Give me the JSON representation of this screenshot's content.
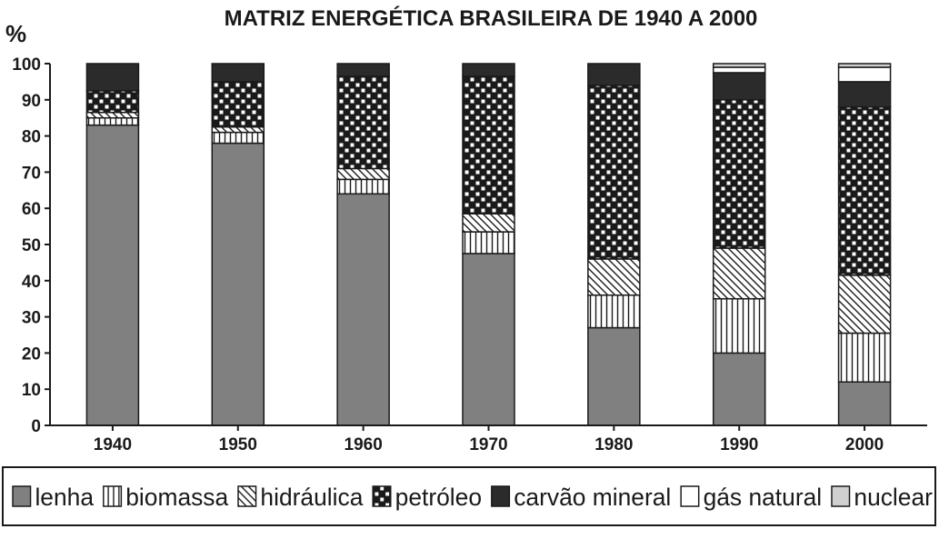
{
  "chart_data": {
    "type": "bar",
    "stacked": true,
    "title": "MATRIZ ENERGÉTICA BRASILEIRA DE 1940 A 2000",
    "ylabel": "%",
    "xlabel": "",
    "ylim": [
      0,
      100
    ],
    "yticks": [
      0,
      10,
      20,
      30,
      40,
      50,
      60,
      70,
      80,
      90,
      100
    ],
    "grid": false,
    "legend_position": "bottom",
    "categories": [
      "1940",
      "1950",
      "1960",
      "1970",
      "1980",
      "1990",
      "2000"
    ],
    "series": [
      {
        "name": "lenha",
        "pattern": "solid-gray",
        "color": "#808080",
        "values": [
          83,
          78,
          64,
          47.5,
          27,
          20,
          12
        ]
      },
      {
        "name": "biomassa",
        "pattern": "vertical-lines",
        "color": "#1a1a1a",
        "values": [
          2,
          3,
          4,
          6,
          9,
          15,
          13.5
        ]
      },
      {
        "name": "hidráulica",
        "pattern": "diagonal-lines",
        "color": "#1a1a1a",
        "values": [
          1.5,
          1.5,
          3,
          5,
          10,
          14,
          16
        ]
      },
      {
        "name": "petróleo",
        "pattern": "checker",
        "color": "#1a1a1a",
        "values": [
          6,
          12.5,
          25.5,
          38,
          48,
          41,
          46.5
        ]
      },
      {
        "name": "carvão mineral",
        "pattern": "solid-dark",
        "color": "#2b2b2b",
        "values": [
          7.5,
          5,
          3.5,
          3.5,
          6,
          7.5,
          7
        ]
      },
      {
        "name": "gás natural",
        "pattern": "white",
        "color": "#ffffff",
        "values": [
          0,
          0,
          0,
          0,
          0,
          1.5,
          4
        ]
      },
      {
        "name": "nuclear",
        "pattern": "light-gray",
        "color": "#d0d0d0",
        "values": [
          0,
          0,
          0,
          0,
          0,
          1,
          1
        ]
      }
    ]
  }
}
